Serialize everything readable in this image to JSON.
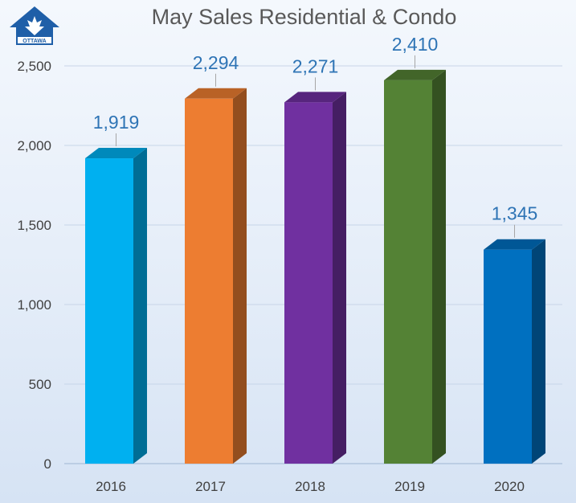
{
  "chart_data": {
    "type": "bar",
    "title": "May Sales Residential & Condo",
    "categories": [
      "2016",
      "2017",
      "2018",
      "2019",
      "2020"
    ],
    "values": [
      1919,
      2294,
      2271,
      2410,
      1345
    ],
    "value_labels": [
      "1,919",
      "2,294",
      "2,271",
      "2,410",
      "1,345"
    ],
    "bar_colors": [
      "#00b0f0",
      "#ed7d31",
      "#7030a0",
      "#548235",
      "#0070c0"
    ],
    "ylim": [
      0,
      2500
    ],
    "yticks": [
      0,
      500,
      1000,
      1500,
      2000,
      2500
    ],
    "ytick_labels": [
      "0",
      "500",
      "1,000",
      "1,500",
      "2,000",
      "2,500"
    ],
    "grid": true,
    "legend": "none",
    "xlabel": "",
    "ylabel": ""
  },
  "logo": {
    "text": "OTTAWA",
    "color": "#1f5fa8",
    "icon": "maple-leaf-house-icon"
  }
}
